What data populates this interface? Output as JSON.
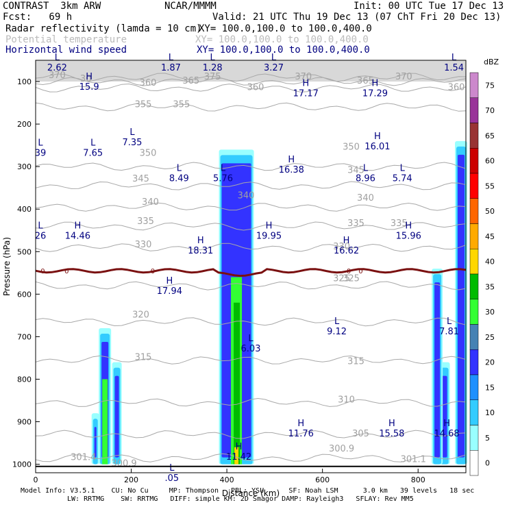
{
  "header": {
    "line1_left": "CONTRAST  3km ARW",
    "line1_mid": "NCAR/MMMM",
    "line1_right": "Init: 00 UTC Tue 17 Dec 13",
    "line2_left": "Fcst:   69 h",
    "line2_right": "Valid: 21 UTC Thu 19 Dec 13 (07 ChT Fri 20 Dec 13)",
    "field1": "Radar reflectivity (lamda = 10 cm)",
    "field1_xy": "XY= 100.0,100.0 to 100.0,400.0",
    "field2": "Potential temperature",
    "field2_xy": "XY= 100.0,100.0 to 100.0,400.0",
    "field3": "Horizontal wind speed",
    "field3_xy": "XY= 100.0,100.0 to 100.0,400.0"
  },
  "footer": {
    "line1": "Model Info: V3.5.1    CU: No Cu     MP: Thompson   PBL: YSU      SF: Noah LSM      3.0 km   39 levels   18 sec",
    "line2": "LW: RRTMG    SW: RRTMG   DIFF: simple KM: 2D Smagor DAMP: Rayleigh3   SFLAY: Rev MM5"
  },
  "chart_data": {
    "type": "cross-section",
    "xlabel": "Distance (km)",
    "ylabel": "Pressure (hPa)",
    "xlim": [
      0,
      900
    ],
    "ylim": [
      1020,
      50
    ],
    "x_ticks": [
      0,
      200,
      400,
      600,
      800
    ],
    "y_ticks": [
      100,
      200,
      300,
      400,
      500,
      600,
      700,
      800,
      900,
      1000
    ],
    "colorbar": {
      "unit": "dBZ",
      "levels": [
        0,
        5,
        10,
        15,
        20,
        25,
        30,
        35,
        40,
        45,
        50,
        55,
        60,
        65,
        70,
        75
      ],
      "colors": [
        "#ffffff",
        "#99ffff",
        "#33ccff",
        "#1e90ff",
        "#3333ff",
        "#4682b4",
        "#33ff33",
        "#00bb00",
        "#ffd700",
        "#ffaa00",
        "#ff6600",
        "#ff0000",
        "#cc0000",
        "#993333",
        "#993399",
        "#cc88cc"
      ]
    },
    "isentropes": [
      {
        "theta": 301.4,
        "p": 985
      },
      {
        "theta": 305,
        "p": 930
      },
      {
        "theta": 310,
        "p": 855
      },
      {
        "theta": 315,
        "p": 755
      },
      {
        "theta": 320,
        "p": 665
      },
      {
        "theta": 325,
        "p": 580
      },
      {
        "theta": 330,
        "p": 490
      },
      {
        "theta": 335,
        "p": 440
      },
      {
        "theta": 340,
        "p": 395
      },
      {
        "theta": 345,
        "p": 345
      },
      {
        "theta": 350,
        "p": 300
      },
      {
        "theta": 355,
        "p": 160
      },
      {
        "theta": 360,
        "p": 115
      },
      {
        "theta": 365,
        "p": 100
      },
      {
        "theta": 370,
        "p": 90
      }
    ],
    "isentrope_labels": [
      {
        "t": "301.4",
        "x": 100,
        "p": 990
      },
      {
        "t": "300.9",
        "x": 640,
        "p": 970
      },
      {
        "t": "301.1",
        "x": 790,
        "p": 995
      },
      {
        "t": "300.9",
        "x": 185,
        "p": 1005
      },
      {
        "t": "305",
        "x": 680,
        "p": 935
      },
      {
        "t": "310",
        "x": 650,
        "p": 855
      },
      {
        "t": "315",
        "x": 225,
        "p": 755
      },
      {
        "t": "315",
        "x": 670,
        "p": 765
      },
      {
        "t": "320",
        "x": 220,
        "p": 655
      },
      {
        "t": "325",
        "x": 660,
        "p": 570
      },
      {
        "t": "330",
        "x": 225,
        "p": 490
      },
      {
        "t": "330",
        "x": 640,
        "p": 495
      },
      {
        "t": "335",
        "x": 230,
        "p": 435
      },
      {
        "t": "335",
        "x": 670,
        "p": 440
      },
      {
        "t": "335",
        "x": 760,
        "p": 440
      },
      {
        "t": "340",
        "x": 240,
        "p": 390
      },
      {
        "t": "340",
        "x": 690,
        "p": 380
      },
      {
        "t": "345",
        "x": 220,
        "p": 335
      },
      {
        "t": "345",
        "x": 670,
        "p": 315
      },
      {
        "t": "350",
        "x": 235,
        "p": 275
      },
      {
        "t": "350",
        "x": 660,
        "p": 260
      },
      {
        "t": "355",
        "x": 225,
        "p": 160
      },
      {
        "t": "355",
        "x": 305,
        "p": 160
      },
      {
        "t": "360",
        "x": 235,
        "p": 110
      },
      {
        "t": "360",
        "x": 460,
        "p": 120
      },
      {
        "t": "360",
        "x": 880,
        "p": 120
      },
      {
        "t": "365",
        "x": 325,
        "p": 105
      },
      {
        "t": "365",
        "x": 690,
        "p": 105
      },
      {
        "t": "370",
        "x": 45,
        "p": 92
      },
      {
        "t": "370",
        "x": 560,
        "p": 95
      },
      {
        "t": "370",
        "x": 770,
        "p": 95
      },
      {
        "t": "375",
        "x": 370,
        "p": 95
      },
      {
        "t": "30",
        "x": 105,
        "p": 100
      },
      {
        "t": "340",
        "x": 440,
        "p": 375
      },
      {
        "t": "325",
        "x": 640,
        "p": 570
      }
    ],
    "wind_extrema": [
      {
        "type": "L",
        "value": "2.62",
        "x": 45,
        "p": 60
      },
      {
        "type": "L",
        "value": "1.87",
        "x": 283,
        "p": 60
      },
      {
        "type": "L",
        "value": "1.28",
        "x": 370,
        "p": 60
      },
      {
        "type": "L",
        "value": "3.27",
        "x": 498,
        "p": 60
      },
      {
        "type": "L",
        "value": "1.54",
        "x": 875,
        "p": 60
      },
      {
        "type": "H",
        "value": "15.9",
        "x": 112,
        "p": 105
      },
      {
        "type": "H",
        "value": "17.17",
        "x": 565,
        "p": 120
      },
      {
        "type": "H",
        "value": "17.29",
        "x": 710,
        "p": 120
      },
      {
        "type": "H",
        "value": "16.01",
        "x": 715,
        "p": 245
      },
      {
        "type": "L",
        "value": "7.35",
        "x": 202,
        "p": 235
      },
      {
        "type": "L",
        "value": "7.65",
        "x": 120,
        "p": 260
      },
      {
        "type": "L",
        "value": "39",
        "x": 10,
        "p": 260
      },
      {
        "type": "H",
        "value": "16.38",
        "x": 535,
        "p": 300
      },
      {
        "type": "L",
        "value": "8.49",
        "x": 300,
        "p": 320
      },
      {
        "type": "L",
        "value": "5.76",
        "x": 392,
        "p": 320
      },
      {
        "type": "L",
        "value": "8.96",
        "x": 690,
        "p": 320
      },
      {
        "type": "L",
        "value": "5.74",
        "x": 767,
        "p": 320
      },
      {
        "type": "H",
        "value": "14.46",
        "x": 88,
        "p": 455
      },
      {
        "type": "L",
        "value": "26",
        "x": 10,
        "p": 455
      },
      {
        "type": "H",
        "value": "19.95",
        "x": 488,
        "p": 455
      },
      {
        "type": "H",
        "value": "15.96",
        "x": 780,
        "p": 455
      },
      {
        "type": "H",
        "value": "18.31",
        "x": 345,
        "p": 490
      },
      {
        "type": "H",
        "value": "16.62",
        "x": 650,
        "p": 490
      },
      {
        "type": "H",
        "value": "17.94",
        "x": 280,
        "p": 585
      },
      {
        "type": "L",
        "value": "9.12",
        "x": 630,
        "p": 680
      },
      {
        "type": "L",
        "value": "7.81",
        "x": 865,
        "p": 680
      },
      {
        "type": "L",
        "value": "6.03",
        "x": 450,
        "p": 720
      },
      {
        "type": "H",
        "value": "11.76",
        "x": 555,
        "p": 920
      },
      {
        "type": "H",
        "value": "15.58",
        "x": 745,
        "p": 920
      },
      {
        "type": "H",
        "value": "14.68",
        "x": 860,
        "p": 920
      },
      {
        "type": "H",
        "value": "11.42",
        "x": 425,
        "p": 975
      },
      {
        "type": "L",
        "value": ".05",
        "x": 285,
        "p": 1025
      }
    ],
    "zero_line": {
      "label": "0",
      "p": 545
    },
    "columns": [
      {
        "x": 145,
        "top": 680,
        "w": 12
      },
      {
        "x": 170,
        "top": 760,
        "w": 8
      },
      {
        "x": 125,
        "top": 880,
        "w": 5
      },
      {
        "x": 420,
        "top": 260,
        "w": 45
      },
      {
        "x": 855,
        "top": 760,
        "w": 10
      },
      {
        "x": 840,
        "top": 540,
        "w": 10
      },
      {
        "x": 890,
        "top": 240,
        "w": 12
      }
    ]
  }
}
